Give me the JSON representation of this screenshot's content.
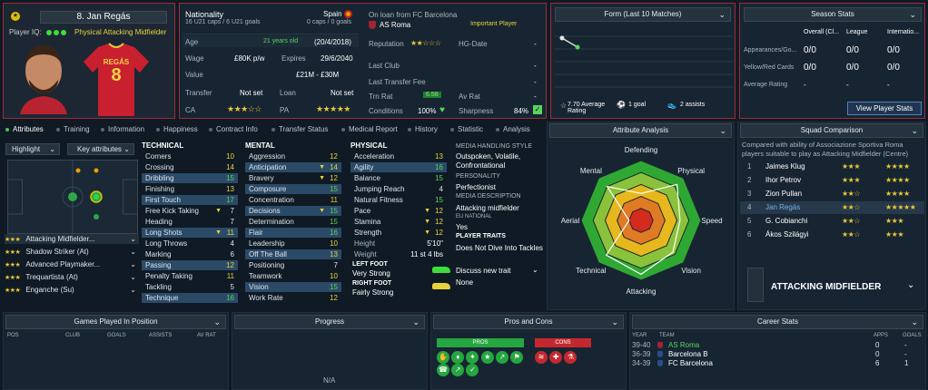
{
  "player": {
    "number_name": "8. Jan Regás",
    "iq_label": "Player IQ:",
    "role": "Physical Attacking Midfielder",
    "shirt_name": "REGÁS",
    "shirt_number": "8"
  },
  "info": {
    "nationality_label": "Nationality",
    "nationality": "Spain",
    "caps": "16 U21 caps / 6 U21 goals",
    "caps_right": "0 caps / 0 goals",
    "loan_title": "On loan from FC Barcelona",
    "club": "AS Roma",
    "status": "Important Player",
    "age_label": "Age",
    "age_text": "21 years old",
    "age_date": "(20/4/2018)",
    "wage_label": "Wage",
    "wage": "£80K p/w",
    "expires_label": "Expires",
    "expires": "29/6/2040",
    "value_label": "Value",
    "value": "£21M - £30M",
    "transfer_label": "Transfer",
    "transfer": "Not set",
    "loan_label": "Loan",
    "loan": "Not set",
    "ca_label": "CA",
    "pa_label": "PA",
    "ca_stars": "★★★☆☆",
    "pa_stars": "★★★★★",
    "rep_label": "Reputation",
    "rep_stars": "★★☆☆☆",
    "hg_label": "HG-Date",
    "hg_val": "-",
    "last_club_label": "Last Club",
    "last_club": "-",
    "last_fee_label": "Last Transfer Fee",
    "last_fee": "-",
    "trn_label": "Trn Rat",
    "trn_val": "6.58",
    "av_label": "Av Rat",
    "av_val": "-",
    "cond_label": "Conditions",
    "cond_val": "100%",
    "sharp_label": "Sharpness",
    "sharp_val": "84%"
  },
  "form": {
    "title": "Form (Last 10 Matches)",
    "avg": "7.70 Average Rating",
    "goals": "1 goal",
    "assists": "2 assists"
  },
  "season": {
    "title": "Season Stats",
    "cols": [
      "Overall (Cl...",
      "League",
      "Internatio..."
    ],
    "rows": [
      {
        "label": "Appearances/Go...",
        "vals": [
          "0/0",
          "0/0",
          "0/0"
        ]
      },
      {
        "label": "Yellow/Red Cards",
        "vals": [
          "0/0",
          "0/0",
          "0/0"
        ]
      },
      {
        "label": "Average Rating",
        "vals": [
          "-",
          "-",
          "-"
        ]
      }
    ],
    "button": "View Player Stats"
  },
  "tabs": [
    "Attributes",
    "Training",
    "Information",
    "Happiness",
    "Contract Info",
    "Transfer Status",
    "Medical Report",
    "History",
    "Statistic",
    "Analysis"
  ],
  "highlight": {
    "highlight_btn": "Highlight",
    "key_btn": "Key attributes"
  },
  "roles": [
    {
      "stars": "★★★",
      "name": "Attacking Midfielder..."
    },
    {
      "stars": "★★★",
      "name": "Shadow Striker (At)"
    },
    {
      "stars": "★★★",
      "name": "Advanced Playmaker..."
    },
    {
      "stars": "★★★",
      "name": "Trequartista (At)"
    },
    {
      "stars": "★★★",
      "name": "Enganche (Su)"
    }
  ],
  "technical": {
    "title": "TECHNICAL",
    "items": [
      {
        "n": "Corners",
        "v": "10"
      },
      {
        "n": "Crossing",
        "v": "14"
      },
      {
        "n": "Dribbling",
        "v": "15",
        "h": 1
      },
      {
        "n": "Finishing",
        "v": "13"
      },
      {
        "n": "First Touch",
        "v": "17",
        "h": 1
      },
      {
        "n": "Free Kick Taking",
        "v": "7",
        "a": 1
      },
      {
        "n": "Heading",
        "v": "7"
      },
      {
        "n": "Long Shots",
        "v": "11",
        "h": 1,
        "a": 1
      },
      {
        "n": "Long Throws",
        "v": "4"
      },
      {
        "n": "Marking",
        "v": "6"
      },
      {
        "n": "Passing",
        "v": "12",
        "h": 1
      },
      {
        "n": "Penalty Taking",
        "v": "11"
      },
      {
        "n": "Tackling",
        "v": "5"
      },
      {
        "n": "Technique",
        "v": "16",
        "h": 1
      }
    ]
  },
  "mental": {
    "title": "MENTAL",
    "items": [
      {
        "n": "Aggression",
        "v": "12"
      },
      {
        "n": "Anticipation",
        "v": "14",
        "h": 1,
        "a": 1
      },
      {
        "n": "Bravery",
        "v": "12",
        "a": 1
      },
      {
        "n": "Composure",
        "v": "15",
        "h": 1
      },
      {
        "n": "Concentration",
        "v": "11"
      },
      {
        "n": "Decisions",
        "v": "15",
        "h": 1,
        "a": 1
      },
      {
        "n": "Determination",
        "v": "15"
      },
      {
        "n": "Flair",
        "v": "16",
        "h": 1
      },
      {
        "n": "Leadership",
        "v": "10"
      },
      {
        "n": "Off The Ball",
        "v": "13",
        "h": 1
      },
      {
        "n": "Positioning",
        "v": "7"
      },
      {
        "n": "Teamwork",
        "v": "10"
      },
      {
        "n": "Vision",
        "v": "15",
        "h": 1
      },
      {
        "n": "Work Rate",
        "v": "12"
      }
    ]
  },
  "physical": {
    "title": "PHYSICAL",
    "items": [
      {
        "n": "Acceleration",
        "v": "13"
      },
      {
        "n": "Agility",
        "v": "16",
        "h": 1
      },
      {
        "n": "Balance",
        "v": "15"
      },
      {
        "n": "Jumping Reach",
        "v": "4"
      },
      {
        "n": "Natural Fitness",
        "v": "15"
      },
      {
        "n": "Pace",
        "v": "12",
        "a": 1
      },
      {
        "n": "Stamina",
        "v": "12",
        "a": 1
      },
      {
        "n": "Strength",
        "v": "12",
        "a": 1
      }
    ],
    "height_label": "Height",
    "height": "5'10\"",
    "weight_label": "Weight",
    "weight": "11 st 4 lbs",
    "left_foot_label": "LEFT FOOT",
    "left_foot": "Very Strong",
    "right_foot_label": "RIGHT FOOT",
    "right_foot": "Fairly Strong"
  },
  "media": {
    "title": "MEDIA HANDLING STYLE",
    "style": "Outspoken, Volatile, Confrontational",
    "personality_label": "PERSONALITY",
    "personality": "Perfectionist",
    "desc_label": "MEDIA DESCRIPTION",
    "desc": "Attacking midfielder",
    "eu_label": "EU NATIONAL",
    "eu": "Yes",
    "traits_label": "PLAYER TRAITS",
    "trait": "Does Not Dive Into Tackles",
    "discuss": "Discuss new trait",
    "none": "None"
  },
  "analysis": {
    "title": "Attribute Analysis",
    "axes": [
      "Defending",
      "Physical",
      "Speed",
      "Vision",
      "Attacking",
      "Technical",
      "Aerial",
      "Mental"
    ],
    "values": [
      0.45,
      0.85,
      0.65,
      0.75,
      0.9,
      0.82,
      0.2,
      0.8
    ]
  },
  "squad": {
    "title": "Squad Comparison",
    "desc": "Compared with ability of Associazione Sportiva Roma players suitable to play as Attacking Midfielder (Centre)",
    "rows": [
      {
        "rank": "1",
        "name": "Jaimes Klug",
        "ca": "★★★",
        "pa": "★★★★"
      },
      {
        "rank": "2",
        "name": "Ihor Petrov",
        "ca": "★★★",
        "pa": "★★★★"
      },
      {
        "rank": "3",
        "name": "Zion Pullan",
        "ca": "★★☆",
        "pa": "★★★★"
      },
      {
        "rank": "4",
        "name": "Jan Regás",
        "ca": "★★☆",
        "pa": "★★★★★",
        "me": 1
      },
      {
        "rank": "5",
        "name": "G. Cobianchi",
        "ca": "★★☆",
        "pa": "★★★"
      },
      {
        "rank": "6",
        "name": "Ákos Szilágyi",
        "ca": "★★☆",
        "pa": "★★★"
      }
    ],
    "position": "ATTACKING MIDFIELDER"
  },
  "bottom": {
    "games_title": "Games Played In Position",
    "games_cols": [
      "POS",
      "CLUB",
      "GOALS",
      "ASSISTS",
      "AV RAT"
    ],
    "progress_title": "Progress",
    "progress_na": "N/A",
    "pros_title": "Pros and Cons",
    "pros": "PROS",
    "cons": "CONS",
    "career_title": "Career Stats",
    "career_cols": [
      "YEAR",
      "TEAM",
      "APPS",
      "GOALS"
    ],
    "career": [
      {
        "year": "39-40",
        "team": "AS Roma",
        "apps": "0",
        "goals": "-"
      },
      {
        "year": "36-39",
        "team": "Barcelona B",
        "apps": "0",
        "goals": "-"
      },
      {
        "year": "34-39",
        "team": "FC Barcelona",
        "apps": "6",
        "goals": "1"
      }
    ]
  },
  "colors": {
    "accent": "#e8d23c",
    "red": "#9e2b3a",
    "green": "#5bd45b"
  }
}
